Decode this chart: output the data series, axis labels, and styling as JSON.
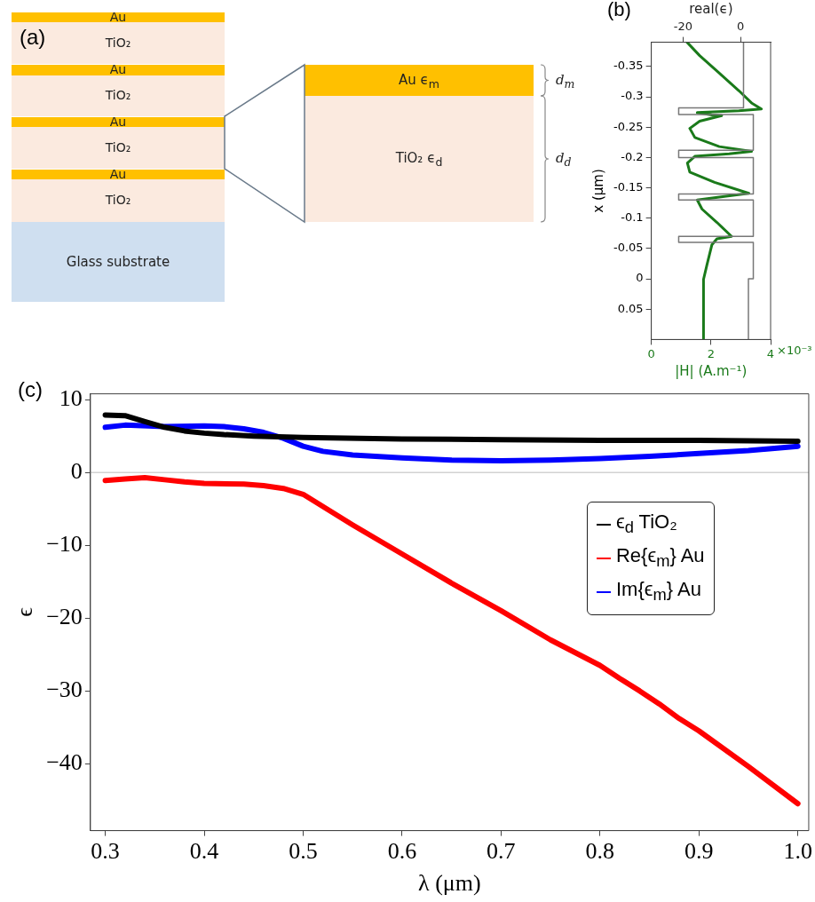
{
  "chart_data": [
    {
      "type": "other",
      "title": "(a)",
      "annotations": [
        "Au",
        "TiO₂",
        "Au",
        "TiO₂",
        "Au",
        "TiO₂",
        "Au",
        "TiO₂",
        "Glass substrate",
        "Au ϵ$_{m}$",
        "TiO₂ ϵ$_{d}$",
        "d$_{m}$",
        "d$_{d}$"
      ]
    },
    {
      "type": "line",
      "title": "(b)",
      "orientation": "horizontal",
      "xlabel": "|H| (A.m⁻¹)",
      "x2label": "real(ϵ)",
      "ylabel": "x (μm)",
      "xlim": [
        0,
        4
      ],
      "xticks": [
        0,
        2,
        4
      ],
      "annotations": [
        "×10⁻³"
      ],
      "x2lim": [
        -31,
        10.4
      ],
      "x2ticks": [
        -20,
        0
      ],
      "ylim": [
        0.1,
        -0.39
      ],
      "yticks": [
        -0.35,
        -0.3,
        -0.25,
        -0.2,
        -0.15,
        -0.1,
        -0.05,
        0,
        0.05
      ],
      "grid": false,
      "legend": false,
      "series": [
        {
          "color": "#777777",
          "axis": "x2",
          "x": [
            -0.39,
            -0.282,
            -0.282,
            -0.271,
            -0.271,
            -0.212,
            -0.212,
            -0.2,
            -0.2,
            -0.14,
            -0.14,
            -0.13,
            -0.13,
            -0.07,
            -0.07,
            -0.06,
            -0.06,
            0,
            0,
            0.1
          ],
          "values": [
            1.0,
            1.0,
            -21.5,
            -21.5,
            4.4,
            4.4,
            -21.5,
            -21.5,
            4.4,
            4.4,
            -21.5,
            -21.5,
            4.4,
            4.4,
            -21.5,
            -21.5,
            4.4,
            4.4,
            2.7,
            2.7
          ]
        },
        {
          "color": "#1a7a1a",
          "x": [
            -0.39,
            -0.368,
            -0.339,
            -0.31,
            -0.29,
            -0.28,
            -0.277,
            -0.274,
            -0.27,
            -0.269,
            -0.26,
            -0.248,
            -0.233,
            -0.218,
            -0.21,
            -0.206,
            -0.202,
            -0.191,
            -0.176,
            -0.159,
            -0.141,
            -0.136,
            -0.13,
            -0.115,
            -0.093,
            -0.07,
            -0.066,
            -0.056,
            -0.024,
            0.001,
            0.099
          ],
          "values": [
            1.2,
            1.62,
            2.28,
            2.94,
            3.36,
            3.69,
            2.94,
            1.54,
            2.03,
            2.36,
            1.62,
            1.29,
            1.46,
            2.28,
            3.36,
            2.61,
            1.46,
            1.21,
            1.29,
            2.12,
            3.27,
            2.45,
            1.54,
            1.7,
            2.2,
            2.69,
            2.2,
            2.03,
            1.87,
            1.75,
            1.75
          ]
        }
      ]
    },
    {
      "type": "line",
      "title": "(c)",
      "xlabel": "λ (μm)",
      "ylabel": "ϵ",
      "xlim": [
        0.285,
        1.011
      ],
      "xticks": [
        0.3,
        0.4,
        0.5,
        0.6,
        0.7,
        0.8,
        0.9,
        {
          "value": 1,
          "label": "1.0"
        }
      ],
      "ylim": [
        -49.2,
        10.8
      ],
      "yticks": [
        {
          "value": 10,
          "label": "10"
        },
        0,
        {
          "value": -10,
          "label": "−10"
        },
        {
          "value": -20,
          "label": "−20"
        },
        {
          "value": -30,
          "label": "−30"
        },
        {
          "value": -40,
          "label": "−40"
        }
      ],
      "grid": false,
      "legend": "right",
      "ref_lines": [
        {
          "axis": "y",
          "value": 0,
          "color": "#bbbbbb"
        }
      ],
      "series": [
        {
          "name": "ϵ$_{d}$ TiO₂",
          "color": "#000000",
          "x": [
            0.3,
            0.32,
            0.34,
            0.36,
            0.38,
            0.4,
            0.42,
            0.45,
            0.5,
            0.6,
            0.7,
            0.8,
            0.9,
            1.0
          ],
          "values": [
            7.9,
            7.8,
            7.0,
            6.2,
            5.7,
            5.4,
            5.2,
            5.0,
            4.8,
            4.6,
            4.5,
            4.4,
            4.4,
            4.3
          ]
        },
        {
          "name": "Re{ϵ$_{m}$} Au",
          "color": "#ff0000",
          "x": [
            0.3,
            0.32,
            0.34,
            0.36,
            0.38,
            0.4,
            0.44,
            0.46,
            0.48,
            0.5,
            0.55,
            0.6,
            0.65,
            0.7,
            0.75,
            0.8,
            0.82,
            0.84,
            0.86,
            0.88,
            0.9,
            0.95,
            1.0
          ],
          "values": [
            -1.1,
            -0.9,
            -0.7,
            -1.0,
            -1.3,
            -1.5,
            -1.6,
            -1.8,
            -2.2,
            -3.0,
            -7.2,
            -11.2,
            -15.2,
            -19.0,
            -23.0,
            -26.5,
            -28.3,
            -30.0,
            -31.8,
            -33.8,
            -35.5,
            -40.4,
            -45.5
          ]
        },
        {
          "name": "Im{ϵ$_{m}$} Au",
          "color": "#0000ff",
          "x": [
            0.3,
            0.32,
            0.36,
            0.4,
            0.42,
            0.44,
            0.46,
            0.48,
            0.5,
            0.52,
            0.55,
            0.6,
            0.65,
            0.7,
            0.75,
            0.8,
            0.85,
            0.9,
            0.95,
            1.0
          ],
          "values": [
            6.2,
            6.5,
            6.3,
            6.4,
            6.3,
            6.0,
            5.5,
            4.7,
            3.6,
            2.9,
            2.4,
            2.0,
            1.7,
            1.6,
            1.7,
            1.9,
            2.2,
            2.6,
            3.0,
            3.6
          ]
        }
      ]
    }
  ]
}
